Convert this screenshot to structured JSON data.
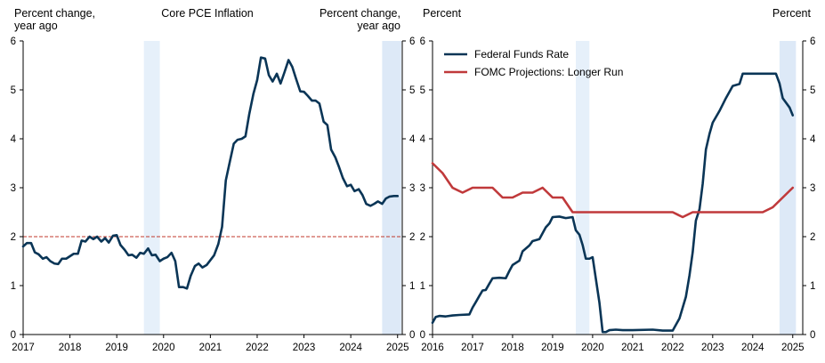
{
  "chart_data": [
    {
      "id": "left",
      "type": "line",
      "title": "Core PCE Inflation",
      "ylabel_left": "Percent change,\nyear ago",
      "ylabel_right": "Percent change,\nyear ago",
      "ylim": [
        0,
        6
      ],
      "xlim": [
        2017.0,
        2025.1
      ],
      "yticks": [
        "0",
        "1",
        "2",
        "3",
        "4",
        "5",
        "6"
      ],
      "xticks": [
        "2017",
        "2018",
        "2019",
        "2020",
        "2021",
        "2022",
        "2023",
        "2024",
        "2025"
      ],
      "reference_line": {
        "y": 2,
        "style": "dashed",
        "color": "#c0392b"
      },
      "shaded_periods": [
        {
          "start": 2019.58,
          "end": 2019.92,
          "color": "#e6f0fa"
        },
        {
          "start": 2024.67,
          "end": 2025.08,
          "color": "#dde9f7"
        }
      ],
      "series": [
        {
          "name": "Core PCE Inflation",
          "color": "#0a3556",
          "x": [
            2017.0,
            2017.08,
            2017.17,
            2017.25,
            2017.33,
            2017.42,
            2017.5,
            2017.58,
            2017.67,
            2017.75,
            2017.83,
            2017.92,
            2018.0,
            2018.08,
            2018.17,
            2018.25,
            2018.33,
            2018.42,
            2018.5,
            2018.58,
            2018.67,
            2018.75,
            2018.83,
            2018.92,
            2019.0,
            2019.08,
            2019.17,
            2019.25,
            2019.33,
            2019.42,
            2019.5,
            2019.58,
            2019.67,
            2019.75,
            2019.83,
            2019.92,
            2020.0,
            2020.08,
            2020.17,
            2020.25,
            2020.33,
            2020.42,
            2020.5,
            2020.58,
            2020.67,
            2020.75,
            2020.83,
            2020.92,
            2021.0,
            2021.08,
            2021.17,
            2021.25,
            2021.33,
            2021.42,
            2021.5,
            2021.58,
            2021.67,
            2021.75,
            2021.83,
            2021.92,
            2022.0,
            2022.08,
            2022.17,
            2022.25,
            2022.33,
            2022.42,
            2022.5,
            2022.58,
            2022.67,
            2022.75,
            2022.83,
            2022.92,
            2023.0,
            2023.08,
            2023.17,
            2023.25,
            2023.33,
            2023.42,
            2023.5,
            2023.58,
            2023.67,
            2023.75,
            2023.83,
            2023.92,
            2024.0,
            2024.08,
            2024.17,
            2024.25,
            2024.33,
            2024.42,
            2024.5,
            2024.58,
            2024.67,
            2024.75,
            2024.83,
            2024.92,
            2025.0
          ],
          "values": [
            1.8,
            1.87,
            1.87,
            1.68,
            1.64,
            1.55,
            1.58,
            1.5,
            1.45,
            1.44,
            1.55,
            1.55,
            1.6,
            1.65,
            1.65,
            1.92,
            1.9,
            2.0,
            1.95,
            2.0,
            1.9,
            1.97,
            1.88,
            2.02,
            2.03,
            1.83,
            1.73,
            1.62,
            1.63,
            1.57,
            1.67,
            1.65,
            1.76,
            1.62,
            1.63,
            1.5,
            1.55,
            1.58,
            1.67,
            1.5,
            0.97,
            0.97,
            0.94,
            1.2,
            1.4,
            1.45,
            1.37,
            1.42,
            1.52,
            1.62,
            1.85,
            2.2,
            3.15,
            3.55,
            3.9,
            3.98,
            4.0,
            4.05,
            4.5,
            4.92,
            5.2,
            5.66,
            5.64,
            5.3,
            5.17,
            5.33,
            5.13,
            5.35,
            5.61,
            5.47,
            5.23,
            4.97,
            4.96,
            4.88,
            4.78,
            4.78,
            4.72,
            4.35,
            4.28,
            3.78,
            3.62,
            3.42,
            3.2,
            3.03,
            3.06,
            2.93,
            2.97,
            2.85,
            2.67,
            2.63,
            2.67,
            2.72,
            2.67,
            2.78,
            2.82,
            2.83,
            2.83
          ]
        }
      ]
    },
    {
      "id": "right",
      "type": "line",
      "ylabel_left": "Percent",
      "ylabel_right": "Percent",
      "ylim": [
        0,
        6
      ],
      "xlim": [
        2016.0,
        2025.25
      ],
      "yticks": [
        "0",
        "1",
        "2",
        "3",
        "4",
        "5",
        "6"
      ],
      "xticks": [
        "2016",
        "2017",
        "2018",
        "2019",
        "2020",
        "2021",
        "2022",
        "2023",
        "2024",
        "2025"
      ],
      "legend_position": "top-left",
      "shaded_periods": [
        {
          "start": 2019.58,
          "end": 2019.92,
          "color": "#e6f0fa"
        },
        {
          "start": 2024.67,
          "end": 2025.08,
          "color": "#dde9f7"
        }
      ],
      "series": [
        {
          "name": "Federal Funds Rate",
          "color": "#0a3556",
          "x": [
            2016.0,
            2016.08,
            2016.17,
            2016.33,
            2016.5,
            2016.67,
            2016.92,
            2017.0,
            2017.08,
            2017.17,
            2017.25,
            2017.33,
            2017.42,
            2017.5,
            2017.67,
            2017.83,
            2017.92,
            2018.0,
            2018.17,
            2018.25,
            2018.42,
            2018.5,
            2018.67,
            2018.83,
            2018.92,
            2019.0,
            2019.17,
            2019.33,
            2019.5,
            2019.58,
            2019.67,
            2019.75,
            2019.83,
            2019.92,
            2020.0,
            2020.17,
            2020.25,
            2020.33,
            2020.42,
            2020.58,
            2020.75,
            2021.0,
            2021.5,
            2021.75,
            2022.0,
            2022.17,
            2022.33,
            2022.42,
            2022.5,
            2022.58,
            2022.67,
            2022.75,
            2022.83,
            2022.92,
            2023.0,
            2023.17,
            2023.33,
            2023.5,
            2023.67,
            2023.75,
            2024.0,
            2024.5,
            2024.58,
            2024.67,
            2024.75,
            2024.92,
            2025.0
          ],
          "values": [
            0.24,
            0.36,
            0.38,
            0.37,
            0.39,
            0.4,
            0.41,
            0.55,
            0.66,
            0.79,
            0.9,
            0.91,
            1.04,
            1.15,
            1.16,
            1.15,
            1.3,
            1.42,
            1.51,
            1.7,
            1.82,
            1.91,
            1.95,
            2.19,
            2.27,
            2.4,
            2.41,
            2.38,
            2.4,
            2.13,
            2.04,
            1.83,
            1.55,
            1.55,
            1.58,
            0.65,
            0.05,
            0.05,
            0.09,
            0.1,
            0.09,
            0.09,
            0.1,
            0.08,
            0.08,
            0.33,
            0.77,
            1.21,
            1.68,
            2.33,
            2.56,
            3.08,
            3.78,
            4.1,
            4.33,
            4.57,
            4.83,
            5.08,
            5.12,
            5.33,
            5.33,
            5.33,
            5.33,
            5.13,
            4.83,
            4.64,
            4.48
          ]
        },
        {
          "name": "FOMC Projections: Longer Run",
          "color": "#c0393b",
          "x": [
            2016.0,
            2016.25,
            2016.5,
            2016.75,
            2017.0,
            2017.25,
            2017.5,
            2017.75,
            2018.0,
            2018.25,
            2018.5,
            2018.75,
            2019.0,
            2019.25,
            2019.5,
            2019.75,
            2020.0,
            2022.0,
            2022.25,
            2022.5,
            2023.0,
            2023.5,
            2024.0,
            2024.25,
            2024.5,
            2024.75,
            2025.0
          ],
          "values": [
            3.5,
            3.3,
            3.0,
            2.9,
            3.0,
            3.0,
            3.0,
            2.8,
            2.8,
            2.9,
            2.9,
            3.0,
            2.8,
            2.8,
            2.5,
            2.5,
            2.5,
            2.5,
            2.4,
            2.5,
            2.5,
            2.5,
            2.5,
            2.5,
            2.6,
            2.8,
            3.0
          ]
        }
      ]
    }
  ]
}
